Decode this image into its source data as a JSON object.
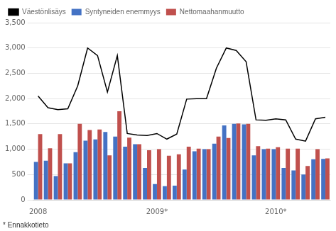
{
  "chart_data": {
    "type": "bar",
    "categories": [
      "2008",
      null,
      null,
      null,
      null,
      null,
      null,
      null,
      null,
      null,
      null,
      null,
      "2009*",
      null,
      null,
      null,
      null,
      null,
      null,
      null,
      null,
      null,
      null,
      null,
      "2010*",
      null,
      null,
      null,
      null,
      null
    ],
    "series": [
      {
        "name": "Syntyneiden enemmyys",
        "color": "#4472C4",
        "values": [
          750,
          775,
          470,
          720,
          940,
          1170,
          1195,
          1340,
          1250,
          1050,
          1100,
          630,
          310,
          270,
          280,
          600,
          960,
          1000,
          1110,
          1470,
          1500,
          1490,
          880,
          1000,
          1000,
          630,
          580,
          500,
          800,
          810
        ]
      },
      {
        "name": "Nettomaahanmuutto",
        "color": "#C0504D",
        "values": [
          1300,
          1020,
          1300,
          720,
          1500,
          1380,
          1390,
          880,
          1750,
          1230,
          1100,
          980,
          1000,
          870,
          900,
          1050,
          1010,
          1000,
          1250,
          1220,
          1510,
          1500,
          1060,
          1010,
          1040,
          1010,
          1010,
          670,
          1000,
          820
        ]
      },
      {
        "name": "Väestönlisäys",
        "type": "line",
        "color": "#000000",
        "values": [
          2050,
          1820,
          1780,
          1800,
          2250,
          3000,
          2850,
          2130,
          2850,
          1310,
          1280,
          1270,
          1310,
          1200,
          1300,
          1990,
          2000,
          2000,
          2600,
          3000,
          2950,
          2730,
          1580,
          1570,
          1600,
          1580,
          1200,
          1160,
          1600,
          1630
        ]
      }
    ],
    "ylim": [
      0,
      3500
    ],
    "yticks": [
      0,
      500,
      1000,
      1500,
      2000,
      2500,
      3000,
      3500
    ],
    "grid": true,
    "legend": "upper left",
    "annotations": [
      "* Ennakkotieto"
    ]
  }
}
